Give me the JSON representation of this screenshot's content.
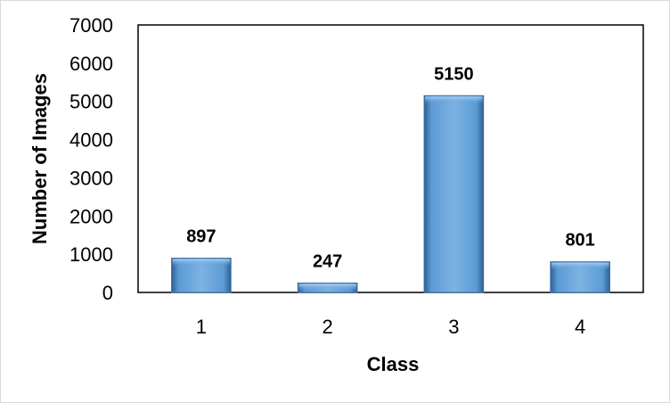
{
  "chart_data": {
    "type": "bar",
    "title": "",
    "xlabel": "Class",
    "ylabel": "Number of Images",
    "categories": [
      "1",
      "2",
      "3",
      "4"
    ],
    "values": [
      897,
      247,
      5150,
      801
    ],
    "data_labels": [
      "897",
      "247",
      "5150",
      "801"
    ],
    "ylim": [
      0,
      7000
    ],
    "yticks": [
      "0",
      "1000",
      "2000",
      "3000",
      "4000",
      "5000",
      "6000",
      "7000"
    ],
    "grid": false,
    "legend": "none",
    "colors": {
      "bar": "#5b9bd5",
      "bar_dark": "#3a6fa6",
      "bar_light": "#9cc3e8",
      "axis": "#000000",
      "frame": "#d9d9d9"
    }
  }
}
